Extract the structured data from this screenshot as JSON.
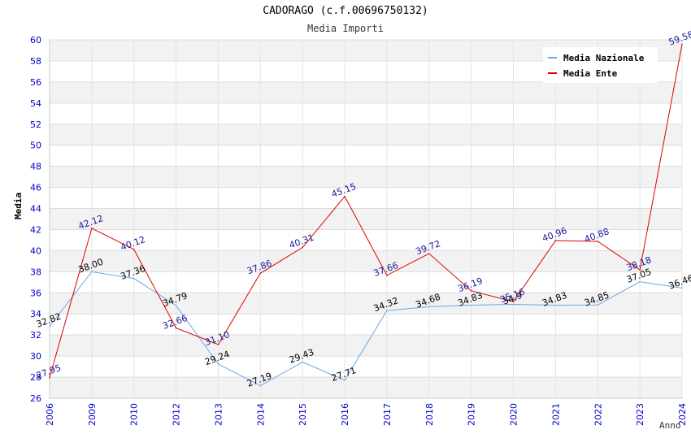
{
  "chart_data": {
    "type": "line",
    "title": "CADORAGO (c.f.00696750132)",
    "subtitle": "Media Importi",
    "xlabel": "Anno",
    "ylabel": "Media",
    "ylim": [
      26,
      60
    ],
    "yticks": [
      26,
      28,
      30,
      32,
      34,
      36,
      38,
      40,
      42,
      44,
      46,
      48,
      50,
      52,
      54,
      56,
      58,
      60
    ],
    "categories": [
      "2006",
      "2009",
      "2010",
      "2012",
      "2013",
      "2014",
      "2015",
      "2016",
      "2017",
      "2018",
      "2019",
      "2020",
      "2021",
      "2022",
      "2023",
      "2024"
    ],
    "legend_position": "top-right",
    "series": [
      {
        "name": "Media Nazionale",
        "color": "#6fa8e6",
        "label_color": "#000000",
        "values": [
          32.82,
          38.0,
          37.36,
          34.79,
          29.24,
          27.19,
          29.43,
          27.71,
          34.32,
          34.68,
          34.83,
          34.9,
          34.83,
          34.85,
          37.05,
          36.46
        ],
        "labels": [
          "32.82",
          "38.00",
          "37.36",
          "34.79",
          "29.24",
          "27.19",
          "29.43",
          "27.71",
          "34.32",
          "34.68",
          "34.83",
          "34.9",
          "34.83",
          "34.85",
          "37.05",
          "36.46"
        ]
      },
      {
        "name": "Media Ente",
        "color": "#dd0000",
        "label_color": "#1a1a99",
        "values": [
          27.95,
          42.12,
          40.12,
          32.66,
          31.1,
          37.86,
          40.31,
          45.15,
          37.66,
          39.72,
          36.19,
          35.16,
          40.96,
          40.88,
          38.18,
          59.58
        ],
        "labels": [
          "27.95",
          "42.12",
          "40.12",
          "32.66",
          "31.10",
          "37.86",
          "40.31",
          "45.15",
          "37.66",
          "39.72",
          "36.19",
          "35.16",
          "40.96",
          "40.88",
          "38.18",
          "59.58"
        ]
      }
    ]
  }
}
